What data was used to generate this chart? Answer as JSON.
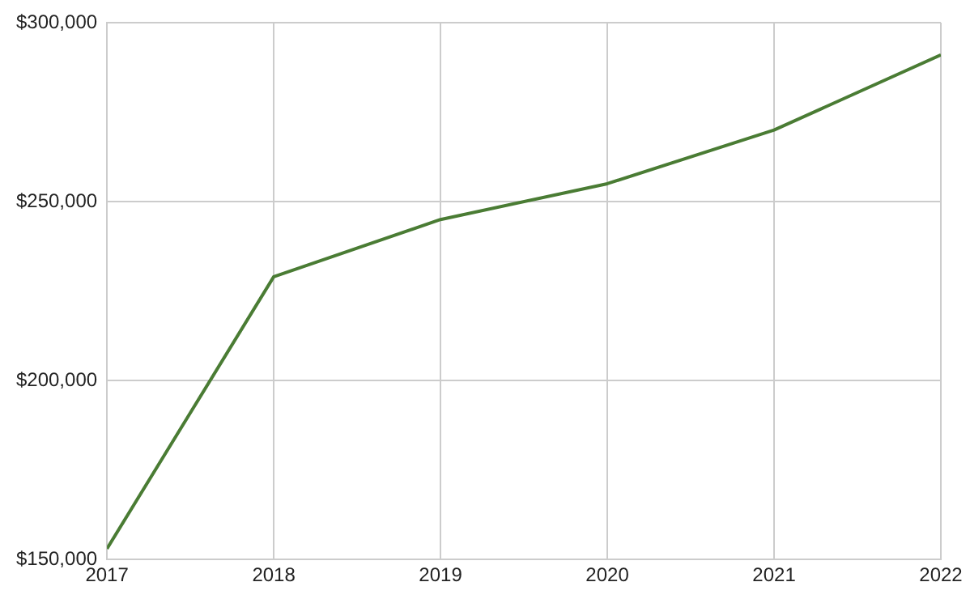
{
  "chart_data": {
    "type": "line",
    "x": [
      2017,
      2018,
      2019,
      2020,
      2021,
      2022
    ],
    "series": [
      {
        "color": "#4a7c34",
        "values": [
          153000,
          229000,
          245000,
          255000,
          270000,
          291000
        ]
      }
    ],
    "xlim": [
      2017,
      2022
    ],
    "xticks": [
      2017,
      2018,
      2019,
      2020,
      2021,
      2022
    ],
    "ylim": [
      150000,
      300000
    ],
    "yticks": [
      {
        "value": 150000,
        "label": "$150,000"
      },
      {
        "value": 200000,
        "label": "$200,000"
      },
      {
        "value": 250000,
        "label": "$250,000"
      },
      {
        "value": 300000,
        "label": "$300,000"
      }
    ],
    "grid": true,
    "legend": false,
    "marker": "none",
    "line_style": "solid"
  }
}
